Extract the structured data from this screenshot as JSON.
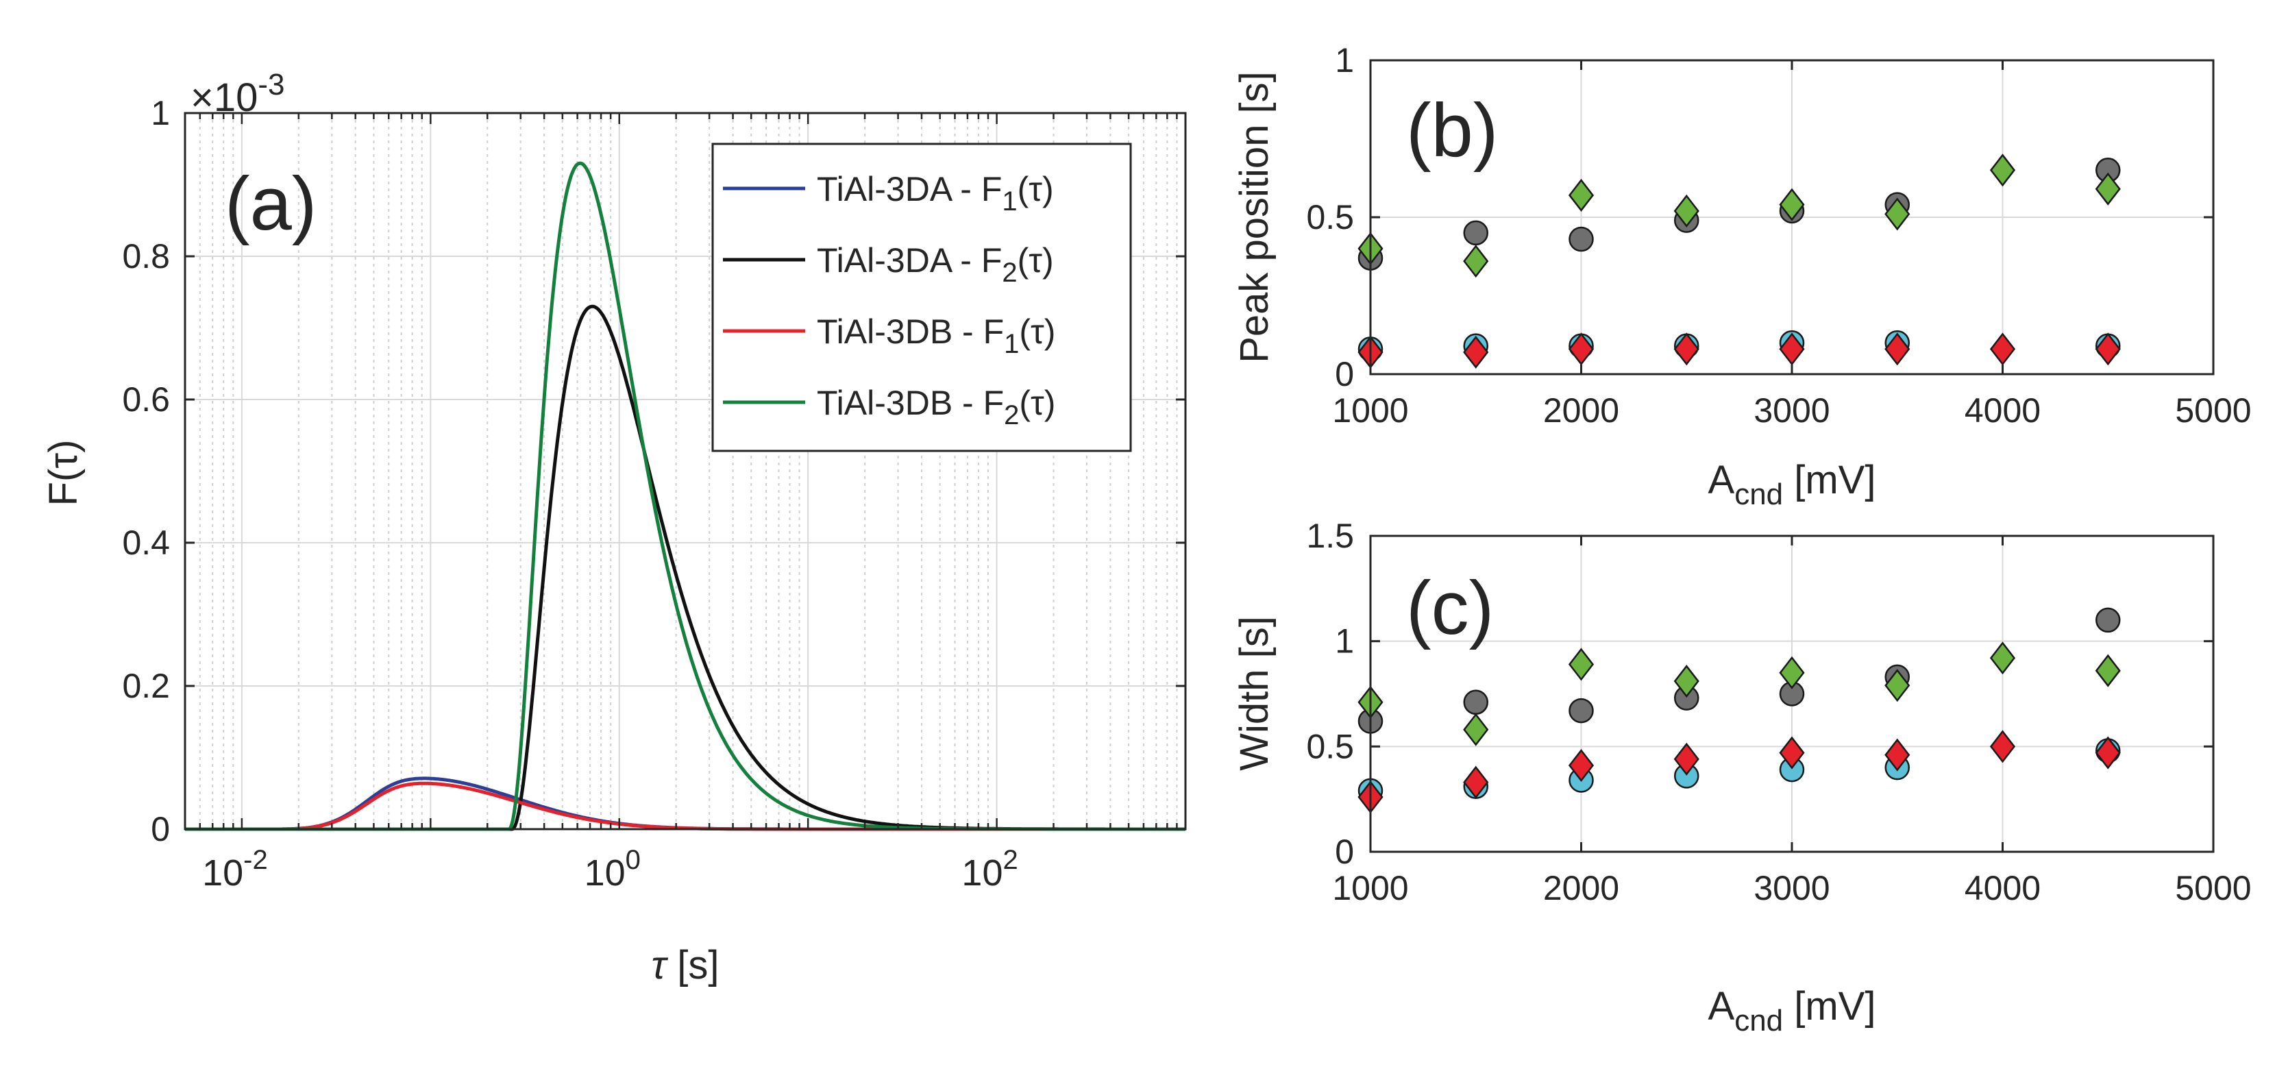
{
  "figure": {
    "panel_a": {
      "panel_label": "(a)",
      "exponent_label": "×10",
      "exponent_power": "-3",
      "ylabel": "F(τ)",
      "xlabel_sym": "τ",
      "xlabel_unit": "[s]",
      "x_ticks": [
        {
          "base": "10",
          "exp": "-2"
        },
        {
          "base": "10",
          "exp": "0"
        },
        {
          "base": "10",
          "exp": "2"
        }
      ],
      "y_ticks": [
        "0",
        "0.2",
        "0.4",
        "0.6",
        "0.8",
        "1"
      ],
      "legend": [
        {
          "pre": "TiAl-3DA - F",
          "sub": "1",
          "post": "(τ)",
          "color": "#2b3f97"
        },
        {
          "pre": "TiAl-3DA - F",
          "sub": "2",
          "post": "(τ)",
          "color": "#111111"
        },
        {
          "pre": "TiAl-3DB - F",
          "sub": "1",
          "post": "(τ)",
          "color": "#e5212b"
        },
        {
          "pre": "TiAl-3DB - F",
          "sub": "2",
          "post": "(τ)",
          "color": "#13813d"
        }
      ]
    },
    "panel_b": {
      "panel_label": "(b)",
      "ylabel": "Peak position  [s]",
      "xlabel_main": "A",
      "xlabel_sub": "cnd",
      "xlabel_unit": " [mV]",
      "x_ticks": [
        "1000",
        "2000",
        "3000",
        "4000",
        "5000"
      ],
      "y_ticks": [
        "0",
        "0.5",
        "1"
      ]
    },
    "panel_c": {
      "panel_label": "(c)",
      "ylabel": "Width [s]",
      "xlabel_main": "A",
      "xlabel_sub": "cnd",
      "xlabel_unit": " [mV]",
      "x_ticks": [
        "1000",
        "2000",
        "3000",
        "4000",
        "5000"
      ],
      "y_ticks": [
        "0",
        "0.5",
        "1",
        "1.5"
      ]
    }
  },
  "chart_data": [
    {
      "type": "line",
      "title": "(a)",
      "xlabel": "τ [s]",
      "ylabel": "F(τ)",
      "xscale": "log",
      "xlim": [
        0.005,
        1000
      ],
      "ylim": [
        0,
        1
      ],
      "y_multiplier": "1e-3",
      "legend_position": "top-right",
      "series": [
        {
          "name": "TiAl-3DA - F1(τ)",
          "color": "#2b3f97",
          "shape": "lognormal",
          "peak_tau": 0.09,
          "peak_value": 0.071,
          "sigma_ln": 1.15,
          "start_tau": 0.015
        },
        {
          "name": "TiAl-3DA - F2(τ)",
          "color": "#111111",
          "shape": "skewed",
          "peak_tau": 0.72,
          "peak_value": 0.73,
          "onset_tau": 0.27,
          "start_tau": 0.27
        },
        {
          "name": "TiAl-3DB - F1(τ)",
          "color": "#e5212b",
          "shape": "lognormal",
          "peak_tau": 0.09,
          "peak_value": 0.064,
          "sigma_ln": 1.15,
          "start_tau": 0.015
        },
        {
          "name": "TiAl-3DB - F2(τ)",
          "color": "#13813d",
          "shape": "skewed",
          "peak_tau": 0.62,
          "peak_value": 0.93,
          "onset_tau": 0.26,
          "start_tau": 0.26
        }
      ]
    },
    {
      "type": "scatter",
      "title": "(b)",
      "xlabel": "Acnd [mV]",
      "ylabel": "Peak position [s]",
      "xlim": [
        1000,
        5000
      ],
      "ylim": [
        0,
        1
      ],
      "series": [
        {
          "name": "TiAl-3DA F1",
          "marker": "circle",
          "color": "#5bc0d8",
          "x": [
            1000,
            1500,
            2000,
            2500,
            3000,
            3500,
            4500
          ],
          "y": [
            0.08,
            0.09,
            0.09,
            0.09,
            0.1,
            0.1,
            0.09
          ]
        },
        {
          "name": "TiAl-3DA F2",
          "marker": "circle",
          "color": "#6f6f6f",
          "x": [
            1000,
            1500,
            2000,
            2500,
            3000,
            3500,
            4500
          ],
          "y": [
            0.37,
            0.45,
            0.43,
            0.49,
            0.52,
            0.54,
            0.65
          ]
        },
        {
          "name": "TiAl-3DB F1",
          "marker": "diamond",
          "color": "#e5212b",
          "x": [
            1000,
            1500,
            2000,
            2500,
            3000,
            3500,
            4000,
            4500
          ],
          "y": [
            0.07,
            0.07,
            0.08,
            0.08,
            0.08,
            0.08,
            0.08,
            0.08
          ]
        },
        {
          "name": "TiAl-3DB F2",
          "marker": "diamond",
          "color": "#6ab33e",
          "x": [
            1000,
            1500,
            2000,
            2500,
            3000,
            3500,
            4000,
            4500
          ],
          "y": [
            0.4,
            0.36,
            0.57,
            0.52,
            0.54,
            0.51,
            0.65,
            0.59
          ]
        }
      ]
    },
    {
      "type": "scatter",
      "title": "(c)",
      "xlabel": "Acnd [mV]",
      "ylabel": "Width [s]",
      "xlim": [
        1000,
        5000
      ],
      "ylim": [
        0,
        1.5
      ],
      "series": [
        {
          "name": "TiAl-3DA F1",
          "marker": "circle",
          "color": "#5bc0d8",
          "x": [
            1000,
            1500,
            2000,
            2500,
            3000,
            3500,
            4500
          ],
          "y": [
            0.29,
            0.31,
            0.34,
            0.36,
            0.39,
            0.4,
            0.48
          ]
        },
        {
          "name": "TiAl-3DA F2",
          "marker": "circle",
          "color": "#6f6f6f",
          "x": [
            1000,
            1500,
            2000,
            2500,
            3000,
            3500,
            4500
          ],
          "y": [
            0.62,
            0.71,
            0.67,
            0.73,
            0.75,
            0.83,
            1.1
          ]
        },
        {
          "name": "TiAl-3DB F1",
          "marker": "diamond",
          "color": "#e5212b",
          "x": [
            1000,
            1500,
            2000,
            2500,
            3000,
            3500,
            4000,
            4500
          ],
          "y": [
            0.26,
            0.33,
            0.41,
            0.44,
            0.47,
            0.46,
            0.5,
            0.47
          ]
        },
        {
          "name": "TiAl-3DB F2",
          "marker": "diamond",
          "color": "#6ab33e",
          "x": [
            1000,
            1500,
            2000,
            2500,
            3000,
            3500,
            4000,
            4500
          ],
          "y": [
            0.71,
            0.58,
            0.89,
            0.81,
            0.85,
            0.79,
            0.92,
            0.86
          ]
        }
      ]
    }
  ]
}
